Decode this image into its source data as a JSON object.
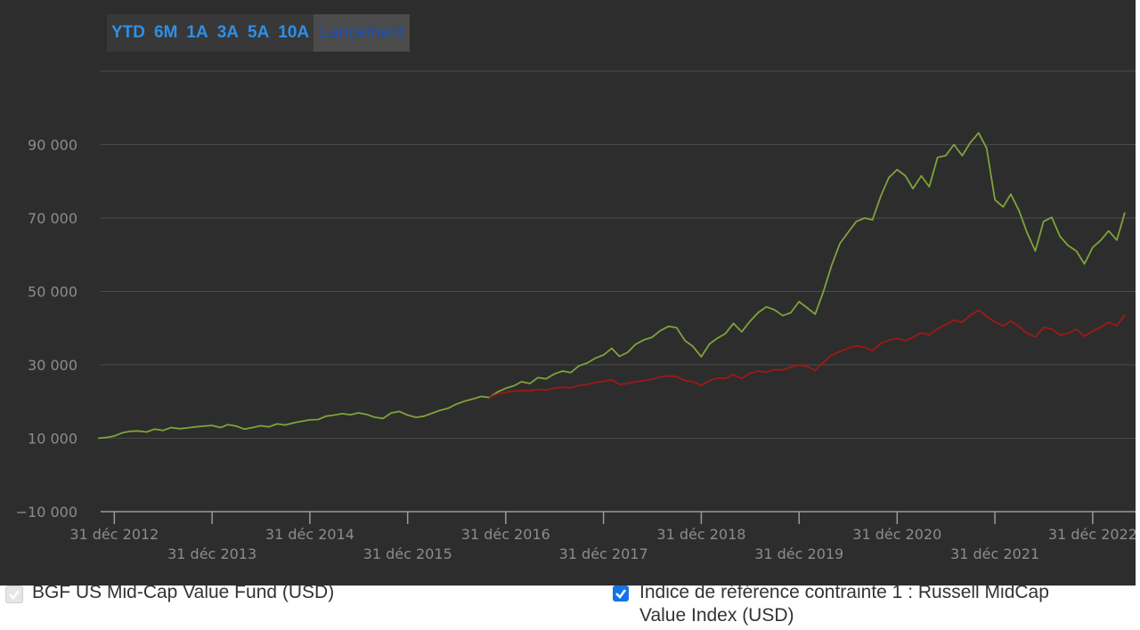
{
  "range_buttons": [
    {
      "label": "YTD",
      "active": false
    },
    {
      "label": "6M",
      "active": false
    },
    {
      "label": "1A",
      "active": false
    },
    {
      "label": "3A",
      "active": false
    },
    {
      "label": "5A",
      "active": false
    },
    {
      "label": "10A",
      "active": false
    },
    {
      "label": "Lancement",
      "active": true
    }
  ],
  "legend": {
    "fund_label": "BGF US Mid-Cap Value Fund (USD)",
    "fund_checked": false,
    "index_label_line1": "Indice de référence contrainte 1 : Russell MidCap",
    "index_label_line2": "Value Index (USD)",
    "index_checked": true
  },
  "chart_data": {
    "type": "line",
    "title": "",
    "xlabel": "",
    "ylabel": "",
    "yticks": [
      -10000,
      10000,
      30000,
      50000,
      70000,
      90000
    ],
    "ytick_labels": [
      "−10 000",
      "10 000",
      "30 000",
      "50 000",
      "70 000",
      "90 000"
    ],
    "ylim": [
      -10000,
      110000
    ],
    "xlim": [
      "2012-10-31",
      "2022-10-31"
    ],
    "xtick_labels": [
      {
        "date": "2012-12-31",
        "label": "31 déc 2012"
      },
      {
        "date": "2013-12-31",
        "label": "31 déc 2013"
      },
      {
        "date": "2014-12-31",
        "label": "31 déc 2014"
      },
      {
        "date": "2015-12-31",
        "label": "31 déc 2015"
      },
      {
        "date": "2016-12-31",
        "label": "31 déc 2016"
      },
      {
        "date": "2017-12-31",
        "label": "31 déc 2017"
      },
      {
        "date": "2018-12-31",
        "label": "31 déc 2018"
      },
      {
        "date": "2019-12-31",
        "label": "31 déc 2019"
      },
      {
        "date": "2020-12-31",
        "label": "31 déc 2020"
      },
      {
        "date": "2021-12-31",
        "label": "31 déc 2021"
      },
      {
        "date": "2022-12-31",
        "label": "31 déc 2022"
      }
    ],
    "grid": true,
    "colors": {
      "fund": "#7ea33a",
      "index": "#a01818"
    },
    "series": [
      {
        "key": "fund",
        "color": "#7ea33a",
        "points": [
          [
            "2012-10-31",
            10000
          ],
          [
            "2012-11-30",
            10200
          ],
          [
            "2012-12-31",
            10600
          ],
          [
            "2013-01-31",
            11500
          ],
          [
            "2013-02-28",
            11900
          ],
          [
            "2013-03-31",
            12000
          ],
          [
            "2013-04-30",
            11700
          ],
          [
            "2013-05-31",
            12500
          ],
          [
            "2013-06-30",
            12100
          ],
          [
            "2013-07-31",
            12900
          ],
          [
            "2013-08-31",
            12600
          ],
          [
            "2013-09-30",
            12800
          ],
          [
            "2013-10-31",
            13100
          ],
          [
            "2013-11-30",
            13300
          ],
          [
            "2013-12-31",
            13500
          ],
          [
            "2014-01-31",
            12900
          ],
          [
            "2014-02-28",
            13700
          ],
          [
            "2014-03-31",
            13300
          ],
          [
            "2014-04-30",
            12500
          ],
          [
            "2014-05-31",
            12900
          ],
          [
            "2014-06-30",
            13400
          ],
          [
            "2014-07-31",
            13100
          ],
          [
            "2014-08-31",
            13900
          ],
          [
            "2014-09-30",
            13600
          ],
          [
            "2014-10-31",
            14200
          ],
          [
            "2014-11-30",
            14600
          ],
          [
            "2014-12-31",
            15000
          ],
          [
            "2015-01-31",
            15100
          ],
          [
            "2015-02-28",
            16000
          ],
          [
            "2015-03-31",
            16300
          ],
          [
            "2015-04-30",
            16700
          ],
          [
            "2015-05-31",
            16400
          ],
          [
            "2015-06-30",
            16900
          ],
          [
            "2015-07-31",
            16500
          ],
          [
            "2015-08-31",
            15700
          ],
          [
            "2015-09-30",
            15400
          ],
          [
            "2015-10-31",
            16900
          ],
          [
            "2015-11-30",
            17300
          ],
          [
            "2015-12-31",
            16300
          ],
          [
            "2016-01-31",
            15700
          ],
          [
            "2016-02-29",
            16000
          ],
          [
            "2016-03-31",
            16800
          ],
          [
            "2016-04-30",
            17600
          ],
          [
            "2016-05-31",
            18200
          ],
          [
            "2016-06-30",
            19300
          ],
          [
            "2016-07-31",
            20100
          ],
          [
            "2016-08-31",
            20700
          ],
          [
            "2016-09-30",
            21400
          ],
          [
            "2016-10-31",
            21100
          ],
          [
            "2016-11-30",
            22600
          ],
          [
            "2016-12-31",
            23600
          ],
          [
            "2017-01-31",
            24300
          ],
          [
            "2017-02-28",
            25400
          ],
          [
            "2017-03-31",
            24900
          ],
          [
            "2017-04-30",
            26500
          ],
          [
            "2017-05-31",
            26200
          ],
          [
            "2017-06-30",
            27500
          ],
          [
            "2017-07-31",
            28300
          ],
          [
            "2017-08-31",
            27900
          ],
          [
            "2017-09-30",
            29700
          ],
          [
            "2017-10-31",
            30500
          ],
          [
            "2017-11-30",
            31800
          ],
          [
            "2017-12-31",
            32700
          ],
          [
            "2018-01-31",
            34500
          ],
          [
            "2018-02-28",
            32300
          ],
          [
            "2018-03-31",
            33400
          ],
          [
            "2018-04-30",
            35600
          ],
          [
            "2018-05-31",
            36800
          ],
          [
            "2018-06-30",
            37500
          ],
          [
            "2018-07-31",
            39300
          ],
          [
            "2018-08-31",
            40500
          ],
          [
            "2018-09-30",
            40100
          ],
          [
            "2018-10-31",
            36600
          ],
          [
            "2018-11-30",
            35000
          ],
          [
            "2018-12-31",
            32200
          ],
          [
            "2019-01-31",
            35700
          ],
          [
            "2019-02-28",
            37200
          ],
          [
            "2019-03-31",
            38500
          ],
          [
            "2019-04-30",
            41300
          ],
          [
            "2019-05-31",
            39000
          ],
          [
            "2019-06-30",
            41800
          ],
          [
            "2019-07-31",
            44200
          ],
          [
            "2019-08-31",
            45800
          ],
          [
            "2019-09-30",
            45000
          ],
          [
            "2019-10-31",
            43400
          ],
          [
            "2019-11-30",
            44200
          ],
          [
            "2019-12-31",
            47200
          ],
          [
            "2020-01-31",
            45500
          ],
          [
            "2020-02-29",
            43800
          ],
          [
            "2020-03-31",
            50000
          ],
          [
            "2020-04-30",
            57000
          ],
          [
            "2020-05-31",
            63000
          ],
          [
            "2020-06-30",
            66000
          ],
          [
            "2020-07-31",
            69000
          ],
          [
            "2020-08-31",
            70000
          ],
          [
            "2020-09-30",
            69500
          ],
          [
            "2020-10-31",
            76000
          ],
          [
            "2020-11-30",
            81000
          ],
          [
            "2020-12-31",
            83200
          ],
          [
            "2021-01-31",
            81500
          ],
          [
            "2021-02-28",
            78000
          ],
          [
            "2021-03-31",
            81500
          ],
          [
            "2021-04-30",
            78500
          ],
          [
            "2021-05-31",
            86500
          ],
          [
            "2021-06-30",
            87000
          ],
          [
            "2021-07-31",
            90000
          ],
          [
            "2021-08-31",
            87000
          ],
          [
            "2021-09-30",
            90500
          ],
          [
            "2021-10-31",
            93200
          ],
          [
            "2021-11-30",
            89000
          ],
          [
            "2021-12-31",
            75000
          ],
          [
            "2022-01-31",
            73000
          ],
          [
            "2022-02-28",
            76500
          ],
          [
            "2022-03-31",
            72000
          ],
          [
            "2022-04-30",
            66000
          ],
          [
            "2022-05-31",
            61000
          ],
          [
            "2022-06-30",
            69000
          ],
          [
            "2022-07-31",
            70200
          ],
          [
            "2022-08-31",
            65000
          ],
          [
            "2022-09-30",
            62500
          ],
          [
            "2022-10-31",
            61000
          ],
          [
            "2022-11-30",
            57500
          ],
          [
            "2022-12-31",
            62000
          ],
          [
            "2023-01-31",
            64000
          ],
          [
            "2023-02-28",
            66500
          ],
          [
            "2023-03-31",
            64000
          ],
          [
            "2023-04-30",
            71500
          ]
        ]
      },
      {
        "key": "index",
        "color": "#a01818",
        "points": [
          [
            "2016-10-31",
            21100
          ],
          [
            "2016-11-30",
            22100
          ],
          [
            "2016-12-31",
            22500
          ],
          [
            "2017-01-31",
            22800
          ],
          [
            "2017-02-28",
            23000
          ],
          [
            "2017-03-31",
            22900
          ],
          [
            "2017-04-30",
            23300
          ],
          [
            "2017-05-31",
            23100
          ],
          [
            "2017-06-30",
            23600
          ],
          [
            "2017-07-31",
            23900
          ],
          [
            "2017-08-31",
            23700
          ],
          [
            "2017-09-30",
            24400
          ],
          [
            "2017-10-31",
            24600
          ],
          [
            "2017-11-30",
            25200
          ],
          [
            "2017-12-31",
            25500
          ],
          [
            "2018-01-31",
            25900
          ],
          [
            "2018-02-28",
            24700
          ],
          [
            "2018-03-31",
            24900
          ],
          [
            "2018-04-30",
            25400
          ],
          [
            "2018-05-31",
            25700
          ],
          [
            "2018-06-30",
            26100
          ],
          [
            "2018-07-31",
            26700
          ],
          [
            "2018-08-31",
            27000
          ],
          [
            "2018-09-30",
            26800
          ],
          [
            "2018-10-31",
            25700
          ],
          [
            "2018-11-30",
            25400
          ],
          [
            "2018-12-31",
            24400
          ],
          [
            "2019-01-31",
            25700
          ],
          [
            "2019-02-28",
            26400
          ],
          [
            "2019-03-31",
            26300
          ],
          [
            "2019-04-30",
            27300
          ],
          [
            "2019-05-31",
            26300
          ],
          [
            "2019-06-30",
            27700
          ],
          [
            "2019-07-31",
            28300
          ],
          [
            "2019-08-31",
            28000
          ],
          [
            "2019-09-30",
            28700
          ],
          [
            "2019-10-31",
            28600
          ],
          [
            "2019-11-30",
            29400
          ],
          [
            "2019-12-31",
            30000
          ],
          [
            "2020-01-31",
            29500
          ],
          [
            "2020-02-29",
            28500
          ],
          [
            "2020-03-31",
            30700
          ],
          [
            "2020-04-30",
            32600
          ],
          [
            "2020-05-31",
            33600
          ],
          [
            "2020-06-30",
            34500
          ],
          [
            "2020-07-31",
            35200
          ],
          [
            "2020-08-31",
            34800
          ],
          [
            "2020-09-30",
            33900
          ],
          [
            "2020-10-31",
            35800
          ],
          [
            "2020-11-30",
            36700
          ],
          [
            "2020-12-31",
            37200
          ],
          [
            "2021-01-31",
            36600
          ],
          [
            "2021-02-28",
            37500
          ],
          [
            "2021-03-31",
            38700
          ],
          [
            "2021-04-30",
            38200
          ],
          [
            "2021-05-31",
            39800
          ],
          [
            "2021-06-30",
            40900
          ],
          [
            "2021-07-31",
            42200
          ],
          [
            "2021-08-31",
            41600
          ],
          [
            "2021-09-30",
            43500
          ],
          [
            "2021-10-31",
            44900
          ],
          [
            "2021-11-30",
            43200
          ],
          [
            "2021-12-31",
            41700
          ],
          [
            "2022-01-31",
            40600
          ],
          [
            "2022-02-28",
            41900
          ],
          [
            "2022-03-31",
            40400
          ],
          [
            "2022-04-30",
            38600
          ],
          [
            "2022-05-31",
            37600
          ],
          [
            "2022-06-30",
            40200
          ],
          [
            "2022-07-31",
            39800
          ],
          [
            "2022-08-31",
            38100
          ],
          [
            "2022-09-30",
            38600
          ],
          [
            "2022-10-31",
            39700
          ],
          [
            "2022-11-30",
            37800
          ],
          [
            "2022-12-31",
            39200
          ],
          [
            "2023-01-31",
            40300
          ],
          [
            "2023-02-28",
            41600
          ],
          [
            "2023-03-31",
            40700
          ],
          [
            "2023-04-30",
            43600
          ]
        ]
      }
    ]
  }
}
